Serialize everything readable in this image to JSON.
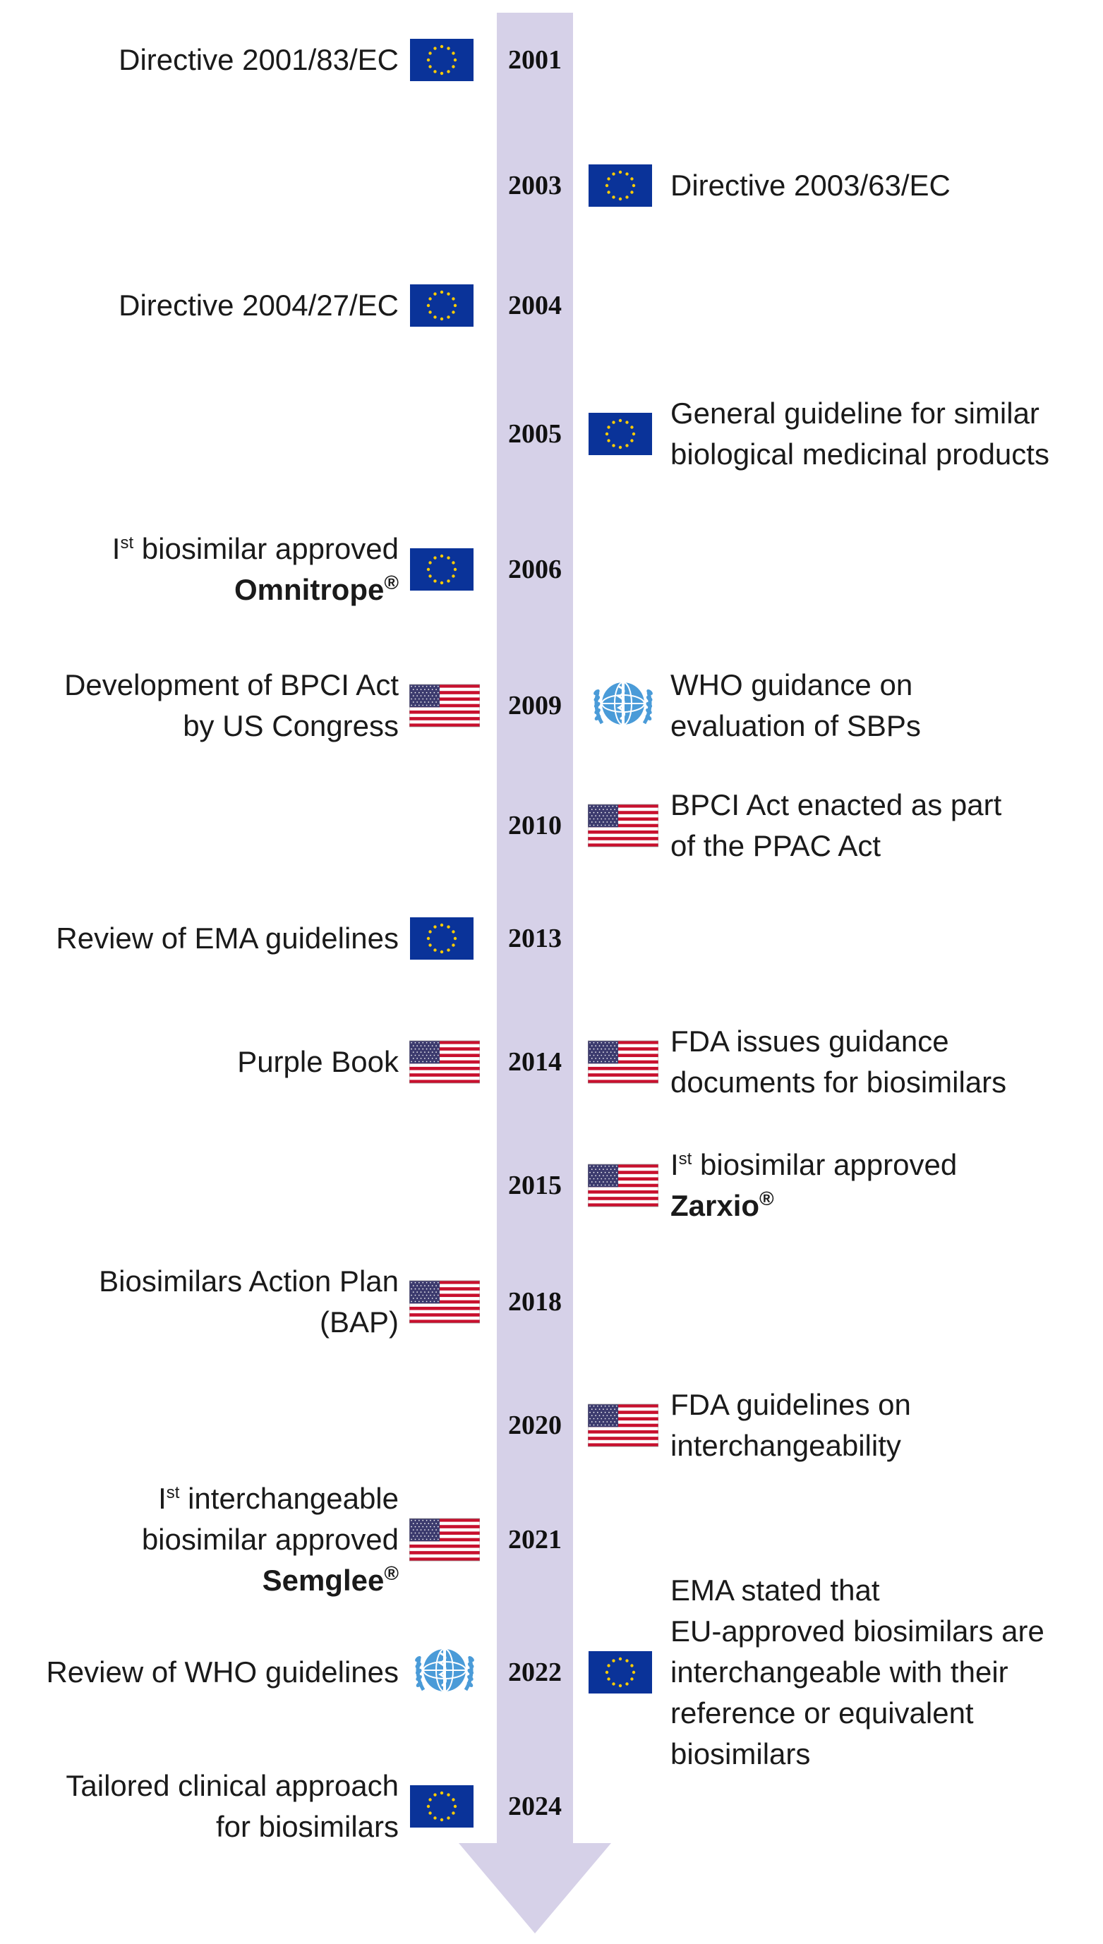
{
  "timeline": [
    {
      "year": "2001",
      "side": "left",
      "flag": "eu-flag-icon",
      "lines": [
        [
          {
            "t": "Directive 2001/83/EC"
          }
        ]
      ]
    },
    {
      "year": "2003",
      "side": "right",
      "flag": "eu-flag-icon",
      "lines": [
        [
          {
            "t": "Directive 2003/63/EC"
          }
        ]
      ]
    },
    {
      "year": "2004",
      "side": "left",
      "flag": "eu-flag-icon",
      "lines": [
        [
          {
            "t": "Directive 2004/27/EC"
          }
        ]
      ]
    },
    {
      "year": "2005",
      "side": "right",
      "flag": "eu-flag-icon",
      "lines": [
        [
          {
            "t": "General guideline for similar"
          }
        ],
        [
          {
            "t": "biological medicinal products"
          }
        ]
      ]
    },
    {
      "year": "2006",
      "side": "left",
      "flag": "eu-flag-icon",
      "lines": [
        [
          {
            "t": "I"
          },
          {
            "t": "st",
            "sup": true
          },
          {
            "t": " biosimilar approved"
          }
        ],
        [
          {
            "t": "Omnitrope",
            "bold": true
          },
          {
            "t": "®",
            "reg": true
          }
        ]
      ]
    },
    {
      "year": "2009",
      "side": "left",
      "flag": "us-flag-icon",
      "lines": [
        [
          {
            "t": "Development of BPCI Act"
          }
        ],
        [
          {
            "t": "by US Congress"
          }
        ]
      ]
    },
    {
      "year": "2009",
      "side": "right",
      "flag": "who-emblem-icon",
      "lines": [
        [
          {
            "t": "WHO guidance on"
          }
        ],
        [
          {
            "t": "evaluation of SBPs"
          }
        ]
      ]
    },
    {
      "year": "2010",
      "side": "right",
      "flag": "us-flag-icon",
      "lines": [
        [
          {
            "t": "BPCI Act enacted as part"
          }
        ],
        [
          {
            "t": "of the PPAC Act"
          }
        ]
      ]
    },
    {
      "year": "2013",
      "side": "left",
      "flag": "eu-flag-icon",
      "lines": [
        [
          {
            "t": "Review of EMA  guidelines"
          }
        ]
      ]
    },
    {
      "year": "2014",
      "side": "left",
      "flag": "us-flag-icon",
      "lines": [
        [
          {
            "t": "Purple Book"
          }
        ]
      ]
    },
    {
      "year": "2014",
      "side": "right",
      "flag": "us-flag-icon",
      "lines": [
        [
          {
            "t": "FDA issues guidance"
          }
        ],
        [
          {
            "t": "documents for biosimilars"
          }
        ]
      ]
    },
    {
      "year": "2015",
      "side": "right",
      "flag": "us-flag-icon",
      "lines": [
        [
          {
            "t": "I"
          },
          {
            "t": "st",
            "sup": true
          },
          {
            "t": " biosimilar approved"
          }
        ],
        [
          {
            "t": "Zarxio",
            "bold": true
          },
          {
            "t": "®",
            "reg": true
          }
        ]
      ]
    },
    {
      "year": "2018",
      "side": "left",
      "flag": "us-flag-icon",
      "lines": [
        [
          {
            "t": "Biosimilars Action Plan"
          }
        ],
        [
          {
            "t": "(BAP)"
          }
        ]
      ]
    },
    {
      "year": "2020",
      "side": "right",
      "flag": "us-flag-icon",
      "lines": [
        [
          {
            "t": "FDA guidelines on"
          }
        ],
        [
          {
            "t": "interchangeability"
          }
        ]
      ]
    },
    {
      "year": "2021",
      "side": "left",
      "flag": "us-flag-icon",
      "lines": [
        [
          {
            "t": "I"
          },
          {
            "t": "st",
            "sup": true
          },
          {
            "t": " interchangeable"
          }
        ],
        [
          {
            "t": "biosimilar approved"
          }
        ],
        [
          {
            "t": "Semglee",
            "bold": true
          },
          {
            "t": "®",
            "reg": true
          }
        ]
      ]
    },
    {
      "year": "2022",
      "side": "left",
      "flag": "who-emblem-icon",
      "lines": [
        [
          {
            "t": "Review of WHO guidelines"
          }
        ]
      ]
    },
    {
      "year": "2022",
      "side": "right",
      "flag": "eu-flag-icon",
      "lines": [
        [
          {
            "t": "EMA stated that"
          }
        ],
        [
          {
            "t": "EU-approved biosimilars are"
          }
        ],
        [
          {
            "t": "interchangeable with their"
          }
        ],
        [
          {
            "t": "reference or equivalent"
          }
        ],
        [
          {
            "t": "biosimilars"
          }
        ]
      ]
    },
    {
      "year": "2024",
      "side": "left",
      "flag": "eu-flag-icon",
      "lines": [
        [
          {
            "t": "Tailored clinical approach"
          }
        ],
        [
          {
            "t": "for biosimilars"
          }
        ]
      ]
    }
  ],
  "colors": {
    "arrow": "#d6d1e8",
    "eu_blue": "#0a3399",
    "eu_star": "#ffcc00",
    "us_red": "#c8102e",
    "us_blue": "#3c3b6e",
    "who_blue": "#4a9bd8"
  }
}
